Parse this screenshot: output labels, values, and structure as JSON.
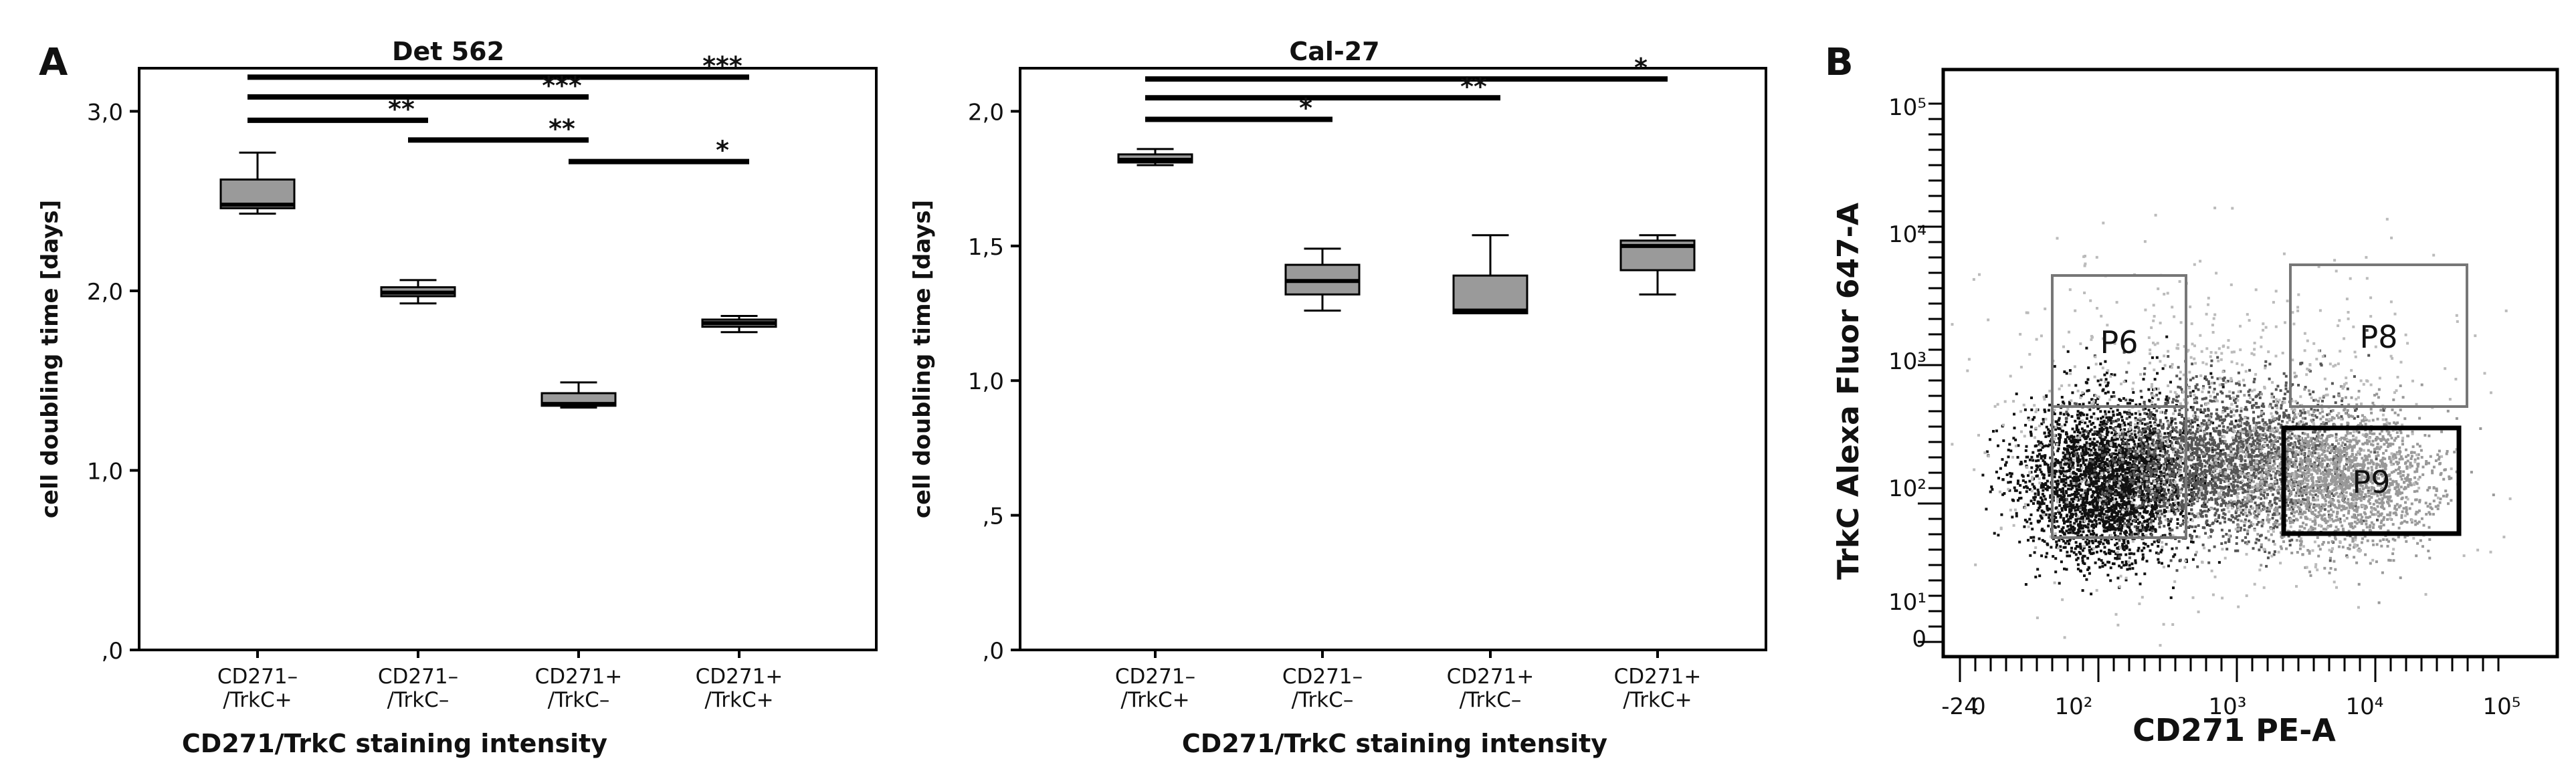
{
  "panel_labels": {
    "a": "A",
    "b": "B"
  },
  "chart_data": [
    {
      "type": "boxplot",
      "title": "Det 562",
      "xlabel": "CD271/TrkC staining intensity",
      "ylabel": "cell doubling time [days]",
      "ylim": [
        0,
        3.0
      ],
      "yticks": [
        {
          "value": 0,
          "label": ",0"
        },
        {
          "value": 1.0,
          "label": "1,0"
        },
        {
          "value": 2.0,
          "label": "2,0"
        },
        {
          "value": 3.0,
          "label": "3,0"
        }
      ],
      "categories": [
        [
          "CD271–",
          "/TrkC+"
        ],
        [
          "CD271–",
          "/TrkC–"
        ],
        [
          "CD271+",
          "/TrkC–"
        ],
        [
          "CD271+",
          "/TrkC+"
        ]
      ],
      "boxes": [
        {
          "min": 2.43,
          "q1": 2.46,
          "median": 2.48,
          "q3": 2.62,
          "max": 2.77
        },
        {
          "min": 1.93,
          "q1": 1.97,
          "median": 1.99,
          "q3": 2.02,
          "max": 2.06
        },
        {
          "min": 1.35,
          "q1": 1.36,
          "median": 1.37,
          "q3": 1.43,
          "max": 1.49
        },
        {
          "min": 1.77,
          "q1": 1.8,
          "median": 1.82,
          "q3": 1.84,
          "max": 1.86
        }
      ],
      "significance": [
        {
          "from": 0,
          "to": 3,
          "y": 3.19,
          "label": "***"
        },
        {
          "from": 0,
          "to": 2,
          "y": 3.08,
          "label": "***"
        },
        {
          "from": 0,
          "to": 1,
          "y": 2.95,
          "label": "**"
        },
        {
          "from": 1,
          "to": 2,
          "y": 2.84,
          "label": "**"
        },
        {
          "from": 2,
          "to": 3,
          "y": 2.72,
          "label": "*"
        }
      ]
    },
    {
      "type": "boxplot",
      "title": "Cal-27",
      "xlabel": "CD271/TrkC staining intensity",
      "ylabel": "cell doubling time [days]",
      "ylim": [
        0,
        2.0
      ],
      "yticks": [
        {
          "value": 0,
          "label": ",0"
        },
        {
          "value": 0.5,
          "label": ",5"
        },
        {
          "value": 1.0,
          "label": "1,0"
        },
        {
          "value": 1.5,
          "label": "1,5"
        },
        {
          "value": 2.0,
          "label": "2,0"
        }
      ],
      "categories": [
        [
          "CD271–",
          "/TrkC+"
        ],
        [
          "CD271–",
          "/TrkC–"
        ],
        [
          "CD271+",
          "/TrkC–"
        ],
        [
          "CD271+",
          "/TrkC+"
        ]
      ],
      "boxes": [
        {
          "min": 1.8,
          "q1": 1.81,
          "median": 1.82,
          "q3": 1.84,
          "max": 1.86
        },
        {
          "min": 1.26,
          "q1": 1.32,
          "median": 1.37,
          "q3": 1.43,
          "max": 1.49
        },
        {
          "min": 1.25,
          "q1": 1.25,
          "median": 1.26,
          "q3": 1.39,
          "max": 1.54
        },
        {
          "min": 1.32,
          "q1": 1.41,
          "median": 1.5,
          "q3": 1.52,
          "max": 1.54
        }
      ],
      "significance": [
        {
          "from": 0,
          "to": 3,
          "y": 2.12,
          "label": "*"
        },
        {
          "from": 0,
          "to": 2,
          "y": 2.05,
          "label": "**"
        },
        {
          "from": 0,
          "to": 1,
          "y": 1.97,
          "label": "*"
        }
      ]
    },
    {
      "type": "scatter",
      "subtype": "flow-cytometry-density",
      "xlabel": "CD271 PE-A",
      "ylabel": "TrkC Alexa Fluor 647-A",
      "xscale": "log",
      "yscale": "log",
      "xticks": [
        "-24",
        "0",
        "10²",
        "10³",
        "10⁴",
        "10⁵"
      ],
      "yticks": [
        "0",
        "10¹",
        "10²",
        "10³",
        "10⁴",
        "10⁵"
      ],
      "gates": [
        {
          "name": "P6",
          "x_range": [
            2.0,
            2.5
          ],
          "y_range": [
            2.4,
            2.95
          ]
        },
        {
          "name": "P8",
          "x_range": [
            3.6,
            4.4
          ],
          "y_range": [
            2.4,
            3.0
          ]
        },
        {
          "name": "P9",
          "x_range": [
            3.6,
            4.3
          ],
          "y_range": [
            1.7,
            2.45
          ]
        }
      ],
      "lower_gate": {
        "x_range": [
          2.0,
          2.5
        ],
        "y_range": [
          1.7,
          2.4
        ]
      }
    }
  ]
}
